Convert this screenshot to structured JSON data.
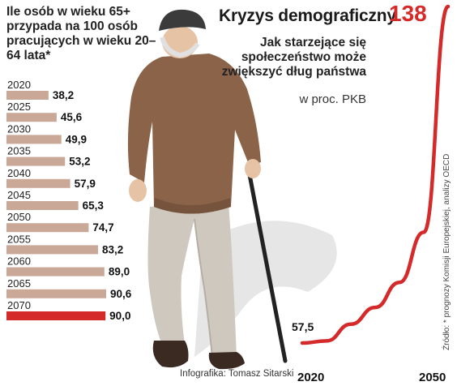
{
  "colors": {
    "bar": "#c9a898",
    "bar_highlight": "#d42a2a",
    "line": "#d42a2a"
  },
  "illustration": {
    "name": "elderly-man-with-cane-illustration"
  },
  "chart_data": [
    {
      "type": "bar",
      "orientation": "horizontal",
      "title": "Ile osób w wieku 65+ przypada na 100 osób pracujących w wieku 20–64 lata*",
      "categories": [
        "2020",
        "2025",
        "2030",
        "2035",
        "2040",
        "2045",
        "2050",
        "2055",
        "2060",
        "2065",
        "2070"
      ],
      "values": [
        38.2,
        45.6,
        49.9,
        53.2,
        57.9,
        65.3,
        74.7,
        83.2,
        89.0,
        90.6,
        90.0
      ],
      "value_labels": [
        "38,2",
        "45,6",
        "49,9",
        "53,2",
        "57,9",
        "65,3",
        "74,7",
        "83,2",
        "89,0",
        "90,6",
        "90,0"
      ],
      "highlight_index": 10,
      "xlim": [
        0,
        90.6
      ]
    },
    {
      "type": "line",
      "title": "Kryzys demograficzny",
      "subtitle": "Jak starzejące się społeczeństwo może zwiększyć dług państwa",
      "unit": "w proc. PKB",
      "x": [
        2020,
        2025,
        2030,
        2035,
        2040,
        2045,
        2050
      ],
      "y": [
        57.5,
        58,
        62,
        66,
        72,
        84,
        138
      ],
      "x_tick_labels": [
        "2020",
        "2050"
      ],
      "start_label": "57,5",
      "end_label": "138"
    }
  ],
  "footer": {
    "credit": "Infografika: Tomasz Sitarski",
    "source": "Źródło: * prognozy Komisji Europejskiej, analizy OECD"
  }
}
